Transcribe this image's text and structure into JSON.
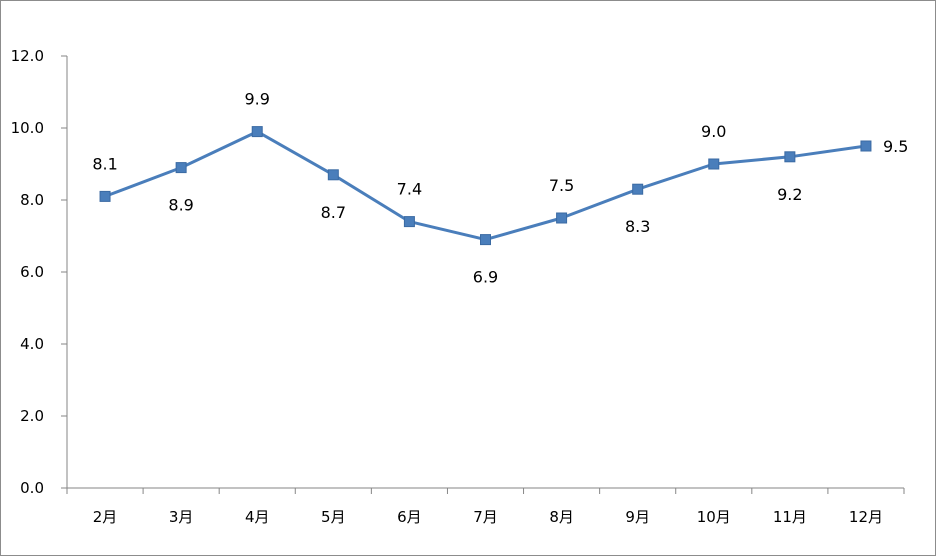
{
  "chart_data": {
    "type": "line",
    "title": "",
    "xlabel": "",
    "ylabel": "",
    "categories": [
      "2月",
      "3月",
      "4月",
      "5月",
      "6月",
      "7月",
      "8月",
      "9月",
      "10月",
      "11月",
      "12月"
    ],
    "series": [
      {
        "values": [
          8.1,
          8.9,
          9.9,
          8.7,
          7.4,
          6.9,
          7.5,
          8.3,
          9.0,
          9.2,
          9.5
        ],
        "color": "#4a7ebb"
      }
    ],
    "data_labels": [
      "8.1",
      "8.9",
      "9.9",
      "8.7",
      "7.4",
      "6.9",
      "7.5",
      "8.3",
      "9.0",
      "9.2",
      "9.5"
    ],
    "data_label_positions": [
      "above",
      "below",
      "above",
      "below",
      "above",
      "below",
      "above",
      "below",
      "above",
      "below",
      "right"
    ],
    "ylim": [
      0,
      12
    ],
    "y_ticks": [
      "0.0",
      "2.0",
      "4.0",
      "6.0",
      "8.0",
      "10.0",
      "12.0"
    ],
    "grid": false,
    "legend": "none",
    "marker": "square"
  }
}
